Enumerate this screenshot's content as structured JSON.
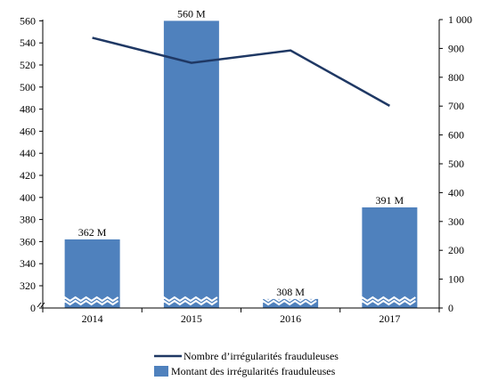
{
  "chart_data": {
    "type": "bar",
    "categories": [
      "2014",
      "2015",
      "2016",
      "2017"
    ],
    "series": [
      {
        "name": "Montant des irrégularités frauduleuses",
        "kind": "bar",
        "axis": "left",
        "values": [
          362,
          560,
          308,
          391
        ],
        "labels": [
          "362 M",
          "560 M",
          "308 M",
          "391 M"
        ],
        "color": "#4f81bd"
      },
      {
        "name": "Nombre d’irrégularités frauduleuses",
        "kind": "line",
        "axis": "right",
        "values": [
          937,
          850,
          893,
          701
        ],
        "color": "#1f3864"
      }
    ],
    "left_axis": {
      "ticks": [
        "0",
        "320",
        "340",
        "360",
        "380",
        "400",
        "420",
        "440",
        "460",
        "480",
        "500",
        "520",
        "540",
        "560"
      ],
      "range": [
        300,
        560
      ],
      "broken": true
    },
    "right_axis": {
      "ticks": [
        "0",
        "100",
        "200",
        "300",
        "400",
        "500",
        "600",
        "700",
        "800",
        "900",
        "1 000"
      ],
      "range": [
        0,
        1000
      ]
    },
    "legend_position": "bottom",
    "grid": false
  }
}
